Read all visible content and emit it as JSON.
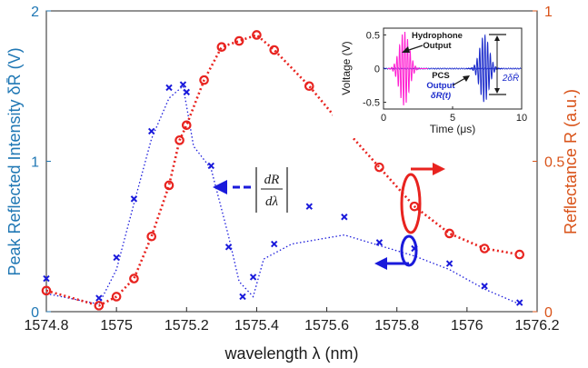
{
  "chart_data": {
    "type": "line",
    "xlabel": "wavelength λ (nm)",
    "ylabel_left": "Peak Reflected Intensity δR̄ (V)",
    "ylabel_right": "Reflectance R (a.u.)",
    "xlim": [
      1574.8,
      1576.2
    ],
    "ylim_left": [
      0,
      2
    ],
    "ylim_right": [
      0,
      1
    ],
    "x_ticks": [
      "1574.8",
      "1575",
      "1575.2",
      "1575.4",
      "1575.6",
      "1575.8",
      "1576",
      "1576.2"
    ],
    "y_ticks_left": [
      "0",
      "1",
      "2"
    ],
    "y_ticks_right": [
      "0",
      "0.5",
      "1"
    ],
    "colors": {
      "left_axis": "#1f77b4",
      "right_axis": "#d95319",
      "blue_series": "#1a1adb",
      "red_series": "#e8231f"
    },
    "series": [
      {
        "axis": "left",
        "style": "markers-x",
        "x": [
          1574.8,
          1574.95,
          1575.0,
          1575.05,
          1575.1,
          1575.15,
          1575.19,
          1575.2,
          1575.27,
          1575.32,
          1575.36,
          1575.39,
          1575.45,
          1575.55,
          1575.65,
          1575.75,
          1575.85,
          1575.95,
          1576.05,
          1576.15
        ],
        "values": [
          0.22,
          0.09,
          0.36,
          0.75,
          1.2,
          1.49,
          1.51,
          1.46,
          0.97,
          0.43,
          0.1,
          0.23,
          0.45,
          0.7,
          0.63,
          0.46,
          0.42,
          0.32,
          0.17,
          0.06
        ]
      },
      {
        "axis": "left",
        "style": "dotted-fit",
        "x": [
          1574.8,
          1574.95,
          1575.0,
          1575.05,
          1575.1,
          1575.15,
          1575.19,
          1575.22,
          1575.27,
          1575.32,
          1575.35,
          1575.39,
          1575.42,
          1575.5,
          1575.65,
          1575.75,
          1575.85,
          1575.95,
          1576.05,
          1576.15
        ],
        "values": [
          0.12,
          0.05,
          0.28,
          0.72,
          1.15,
          1.42,
          1.5,
          1.1,
          0.95,
          0.5,
          0.2,
          0.1,
          0.35,
          0.45,
          0.51,
          0.44,
          0.37,
          0.28,
          0.15,
          0.05
        ]
      },
      {
        "axis": "right",
        "style": "markers-o-dotted",
        "x": [
          1574.8,
          1574.95,
          1575.0,
          1575.05,
          1575.1,
          1575.15,
          1575.18,
          1575.2,
          1575.25,
          1575.3,
          1575.35,
          1575.4,
          1575.45,
          1575.55,
          1575.65,
          1575.75,
          1575.85,
          1575.95,
          1576.05,
          1576.15
        ],
        "values": [
          0.07,
          0.02,
          0.05,
          0.11,
          0.25,
          0.42,
          0.57,
          0.62,
          0.77,
          0.88,
          0.9,
          0.92,
          0.87,
          0.75,
          0.61,
          0.48,
          0.35,
          0.26,
          0.21,
          0.19
        ]
      }
    ],
    "annotations": {
      "derivative_num": "dR",
      "derivative_den": "dλ"
    },
    "inset": {
      "xlabel": "Time (μs)",
      "ylabel": "Voltage (V)",
      "xlim": [
        0,
        10
      ],
      "ylim": [
        -0.6,
        0.6
      ],
      "x_ticks": [
        "0",
        "5",
        "10"
      ],
      "y_ticks": [
        "0.5",
        "0",
        "-0.5"
      ],
      "hydrophone_label_line1": "Hydrophone",
      "hydrophone_label_line2": "Output",
      "pcs_label_line1": "PCS",
      "pcs_label_line2": "Output",
      "pcs_label_line3": "δR(t)",
      "amplitude_label": "2δR̄",
      "colors": {
        "hydrophone": "#ff1fd2",
        "pcs": "#1a2acb"
      }
    }
  }
}
